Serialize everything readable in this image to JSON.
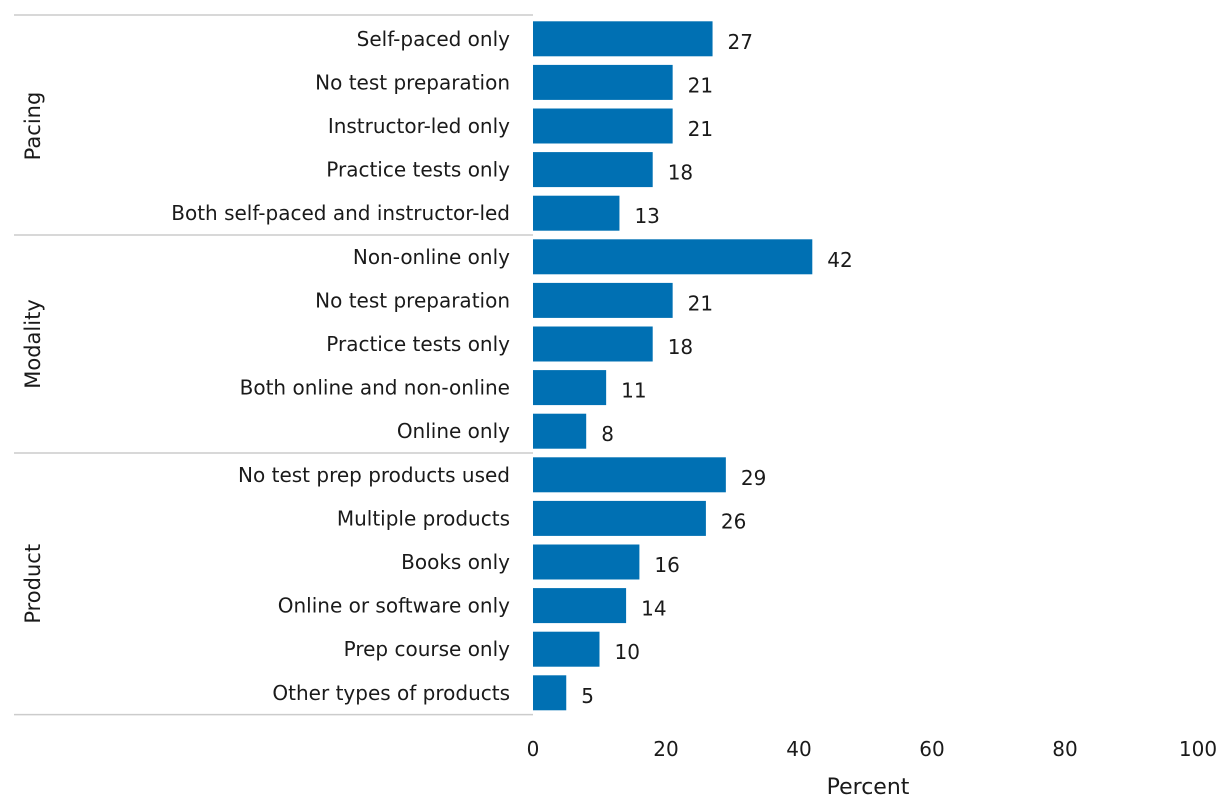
{
  "chart_data": {
    "type": "bar",
    "orientation": "horizontal",
    "xlabel": "Percent",
    "xlim": [
      0,
      100
    ],
    "xticks": [
      0,
      20,
      40,
      60,
      80,
      100
    ],
    "grid": false,
    "bar_color": "#0070B3",
    "groups": [
      {
        "name": "Pacing",
        "categories": [
          "Self-paced only",
          "No test preparation",
          "Instructor-led only",
          "Practice tests only",
          "Both self-paced and instructor-led"
        ],
        "values": [
          27,
          21,
          21,
          18,
          13
        ]
      },
      {
        "name": "Modality",
        "categories": [
          "Non-online only",
          "No test preparation",
          "Practice tests only",
          "Both online and non-online",
          "Online only"
        ],
        "values": [
          42,
          21,
          18,
          11,
          8
        ]
      },
      {
        "name": "Product",
        "categories": [
          "No test prep products used",
          "Multiple products",
          "Books only",
          "Online or software only",
          "Prep course only",
          "Other types of products"
        ],
        "values": [
          29,
          26,
          16,
          14,
          10,
          5
        ]
      }
    ]
  }
}
